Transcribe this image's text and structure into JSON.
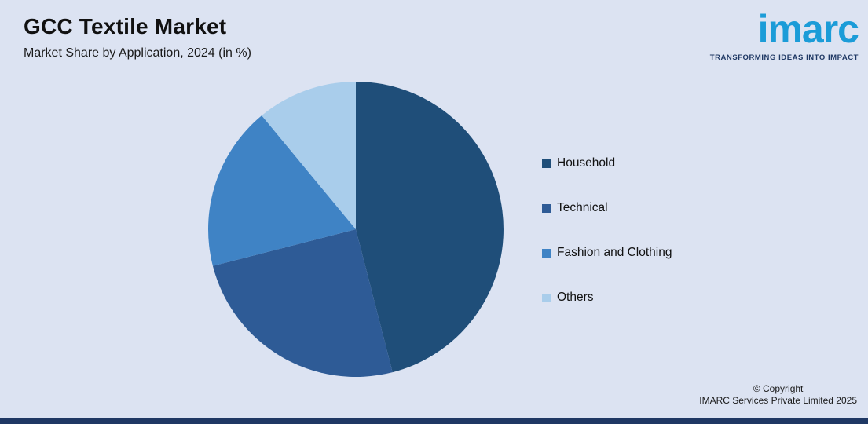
{
  "header": {
    "title": "GCC Textile Market",
    "subtitle": "Market Share by Application, 2024 (in %)"
  },
  "logo": {
    "text": "imarc",
    "tagline": "TRANSFORMING IDEAS INTO IMPACT"
  },
  "footer": {
    "copyright_line1": "© Copyright",
    "copyright_line2": "IMARC Services Private Limited 2025"
  },
  "colors": {
    "background": "#dce3f2",
    "accent_bar": "#1f3864",
    "logo_blue": "#1b9cd8",
    "tagline_navy": "#1f3864"
  },
  "chart_data": {
    "type": "pie",
    "title": "GCC Textile Market",
    "subtitle": "Market Share by Application, 2024 (in %)",
    "categories": [
      "Household",
      "Technical",
      "Fashion and Clothing",
      "Others"
    ],
    "values": [
      46,
      25,
      18,
      11
    ],
    "colors": [
      "#1f4e79",
      "#2e5b96",
      "#3f83c5",
      "#a9cdeb"
    ],
    "unit": "%",
    "start_angle_deg": 0,
    "direction": "clockwise",
    "legend_position": "right",
    "data_labels": false
  }
}
